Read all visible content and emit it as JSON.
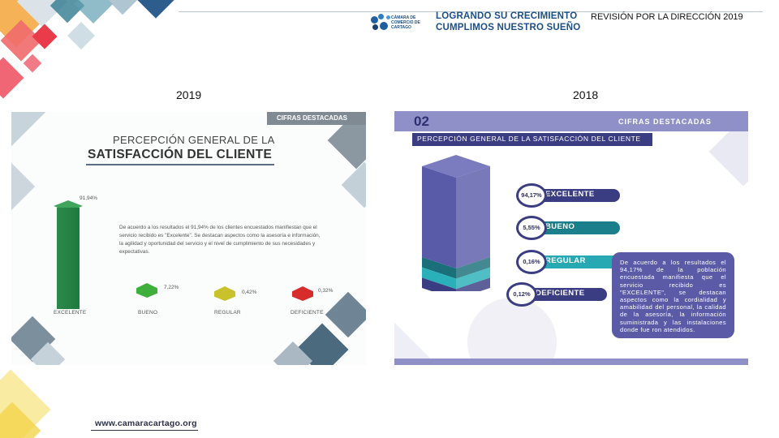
{
  "header": {
    "logo_small_text": "CÁMARA DE COMERCIO DE CARTAGO",
    "slogan_line1": "LOGRANDO SU CRECIMIENTO",
    "slogan_line2": "CUMPLIMOS NUESTRO SUEÑO",
    "review_title": "REVISIÓN POR LA DIRECCIÓN 2019"
  },
  "years": {
    "left": "2019",
    "right": "2018"
  },
  "panel_2019": {
    "tag": "CIFRAS DESTACADAS",
    "title_line1": "PERCEPCIÓN GENERAL DE LA",
    "title_line2": "SATISFACCIÓN DEL CLIENTE",
    "paragraph": "De acuerdo a los resultados el 91,94% de los clientes encuestados manifiestan que el servicio recibido es \"Excelente\". Se destacan aspectos como la asesoría e información, la agilidad y oportunidad del servicio y el nivel de cumplimiento de sus necesidades y expectativas.",
    "chart_data": {
      "type": "bar",
      "categories": [
        "EXCELENTE",
        "BUENO",
        "REGULAR",
        "DEFICIENTE"
      ],
      "value_labels": [
        "91,94%",
        "7,22%",
        "0,42%",
        "0,32%"
      ],
      "values": [
        91.94,
        7.22,
        0.42,
        0.32
      ],
      "colors": [
        "#1f7a3d",
        "#3fae3b",
        "#c9c22c",
        "#d62c2c"
      ]
    }
  },
  "panel_2018": {
    "number": "02",
    "tag": "CIFRAS DESTACADAS",
    "subtitle": "PERCEPCIÓN GENERAL DE LA SATISFACCIÓN DEL CLIENTE",
    "legend": [
      {
        "pct": "94,17%",
        "label": "EXCELENTE",
        "color": "#3b3d83"
      },
      {
        "pct": "5,55%",
        "label": "BUENO",
        "color": "#1a7f8a"
      },
      {
        "pct": "0,16%",
        "label": "REGULAR",
        "color": "#27a9b3"
      },
      {
        "pct": "0,12%",
        "label": "DEFICIENTE",
        "color": "#3b3d83"
      }
    ],
    "chart_data": {
      "type": "bar",
      "categories": [
        "EXCELENTE",
        "BUENO",
        "REGULAR",
        "DEFICIENTE"
      ],
      "values": [
        94.17,
        5.55,
        0.16,
        0.12
      ],
      "colors": [
        "#5a5ba8",
        "#1a6f7a",
        "#2ab0b8",
        "#3b3d83"
      ]
    },
    "box_text": "De acuerdo a los resultados el 94,17% de la población encuestada manifiesta que el servicio recibido es \"EXCELENTE\", se destacan aspectos como la cordialidad y amabilidad del personal, la calidad de la asesoría, la información suministrada y las instalaciones donde fue ron atendidos."
  },
  "footer": {
    "website": "www.camaracartago.org"
  }
}
